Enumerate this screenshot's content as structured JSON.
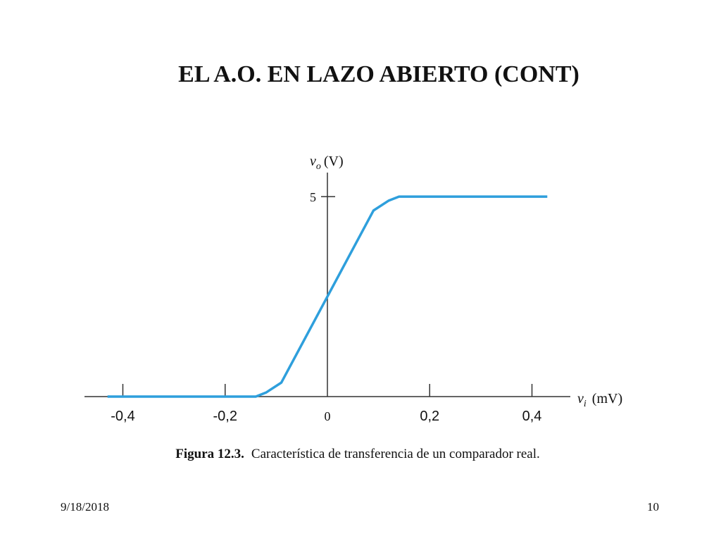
{
  "title": "EL A.O. EN LAZO ABIERTO (CONT)",
  "chart_data": {
    "type": "line",
    "x": [
      -0.43,
      -0.14,
      -0.12,
      -0.09,
      0.09,
      0.12,
      0.14,
      0.43
    ],
    "series": [
      {
        "color": "#2e9fdc",
        "values": [
          0,
          0,
          0.1,
          0.35,
          4.65,
          4.9,
          5,
          5
        ]
      }
    ],
    "xlim": [
      -0.475,
      0.475
    ],
    "ylim": [
      0,
      5.6
    ],
    "xticks": [
      {
        "value": -0.4,
        "label": "-0,4"
      },
      {
        "value": -0.2,
        "label": "-0,2"
      },
      0,
      {
        "value": 0.2,
        "label": "0,2"
      },
      {
        "value": 0.4,
        "label": "0,4"
      }
    ],
    "yticks": [
      5
    ],
    "ylabel": {
      "symbol": "v",
      "subscript": "o",
      "unit": "(V)"
    },
    "xlabel": {
      "symbol": "v",
      "subscript": "i",
      "unit": "(mV)"
    }
  },
  "caption": {
    "label": "Figura 12.3.",
    "text": "Característica de transferencia de un comparador real."
  },
  "footer": {
    "date": "9/18/2018",
    "page": "10"
  }
}
